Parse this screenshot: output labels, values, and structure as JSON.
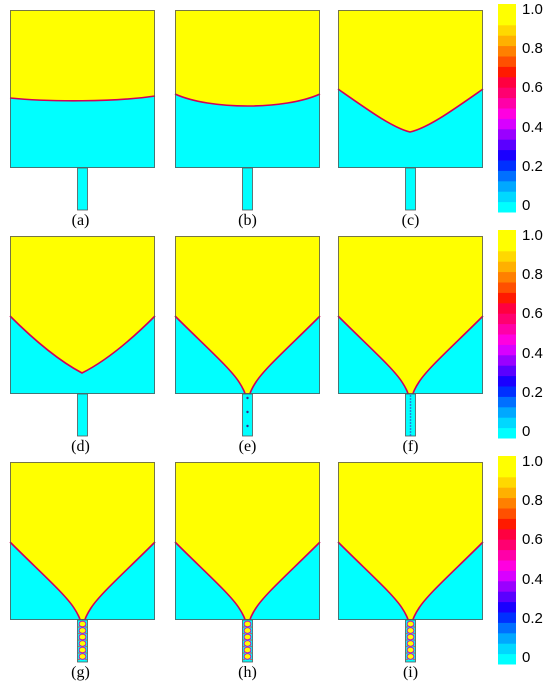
{
  "panels": [
    {
      "label": "(a)",
      "interface": "flat-high",
      "channel": "empty"
    },
    {
      "label": "(b)",
      "interface": "flat-sag",
      "channel": "empty"
    },
    {
      "label": "(c)",
      "interface": "v-shallow",
      "channel": "empty"
    },
    {
      "label": "(d)",
      "interface": "v-deep",
      "channel": "empty"
    },
    {
      "label": "(e)",
      "interface": "funnel",
      "channel": "few-dots"
    },
    {
      "label": "(f)",
      "interface": "funnel",
      "channel": "dotted-line"
    },
    {
      "label": "(g)",
      "interface": "funnel",
      "channel": "bubbly"
    },
    {
      "label": "(h)",
      "interface": "funnel",
      "channel": "bubbly"
    },
    {
      "label": "(i)",
      "interface": "funnel",
      "channel": "bubbly"
    }
  ],
  "colorbar": {
    "ticks": [
      "1.0",
      "0.8",
      "0.6",
      "0.4",
      "0.2",
      "0"
    ],
    "colors": [
      "#00ffff",
      "#00d8ff",
      "#00a8ff",
      "#0070ff",
      "#0030ff",
      "#1a00ff",
      "#5a00ff",
      "#9a00ff",
      "#d800ff",
      "#ff00e0",
      "#ff00a8",
      "#ff0070",
      "#ff0040",
      "#ff1a00",
      "#ff5000",
      "#ff8000",
      "#ffb000",
      "#ffd800",
      "#ffff00",
      "#ffff00"
    ]
  },
  "colors": {
    "fluid_top": "#ffff00",
    "fluid_bottom": "#00ffff",
    "interface": "#d0005a",
    "outline": "#555555"
  }
}
